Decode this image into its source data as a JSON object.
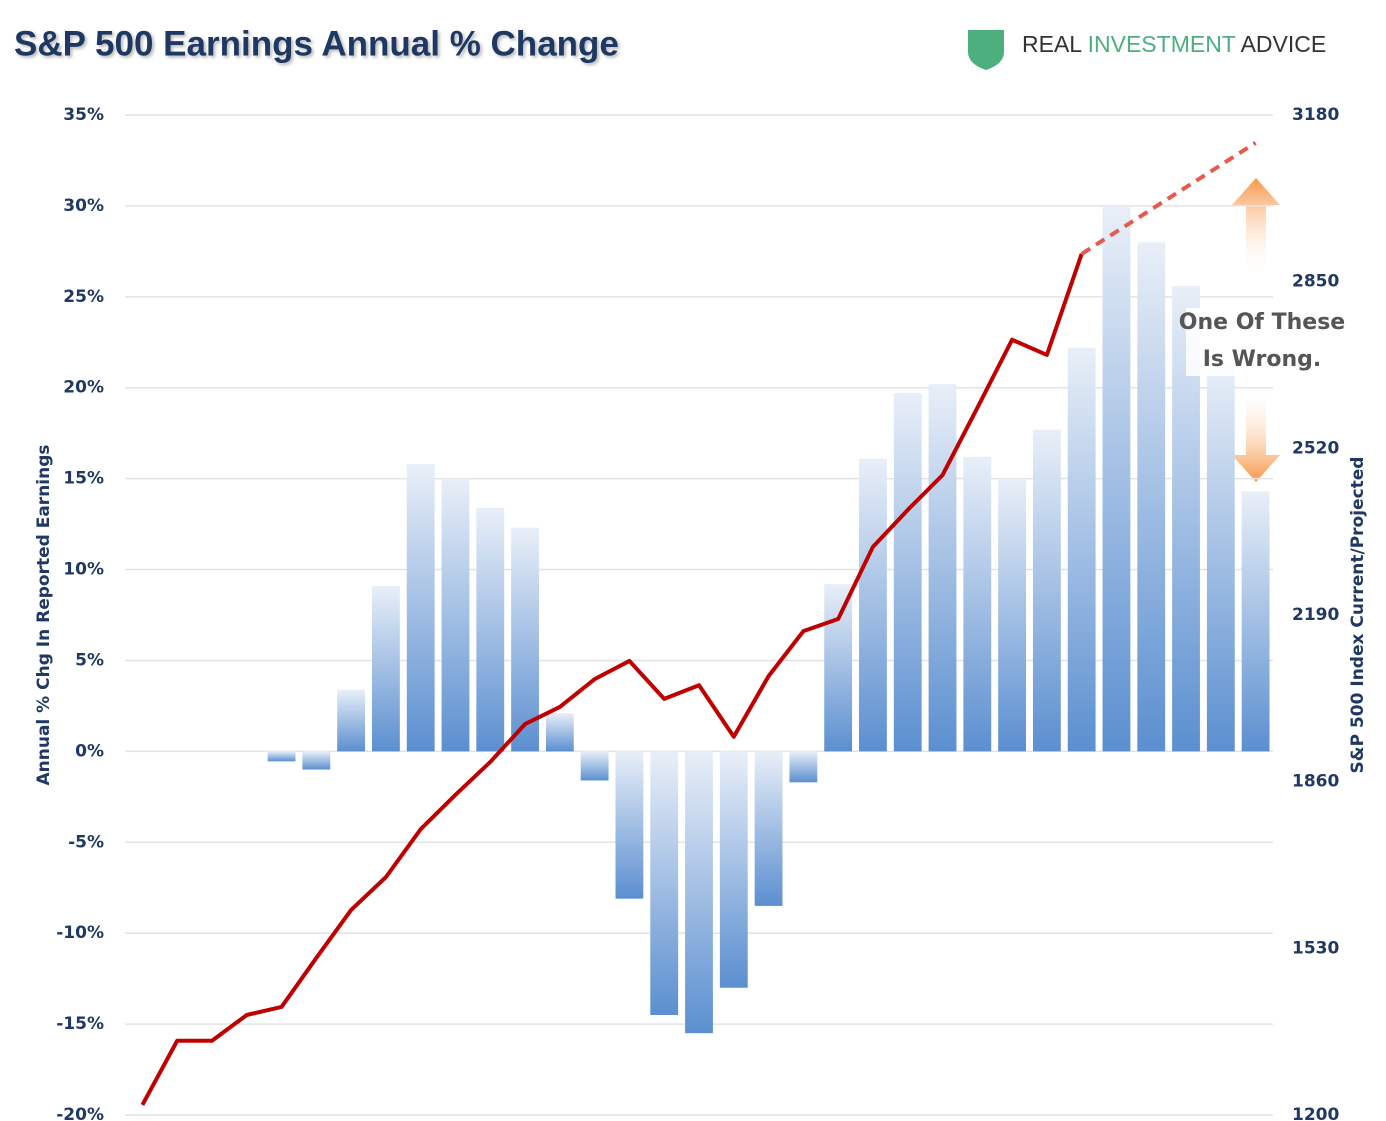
{
  "chart_data": {
    "type": "bar-line",
    "title": "S&P 500 Earnings Annual % Change",
    "logo": [
      "REAL ",
      "INVESTMENT",
      " ADVICE"
    ],
    "y_label": "Annual % Chg In Reported Earnings",
    "y2_label": "S&P 500 Index Current/Projected",
    "annotation": [
      "One Of These",
      "Is Wrong."
    ],
    "ylim": [
      -20,
      35
    ],
    "yticks": [
      {
        "value": -20,
        "label": "-20%"
      },
      {
        "value": -15,
        "label": "-15%"
      },
      {
        "value": -10,
        "label": "-10%"
      },
      {
        "value": -5,
        "label": "-5%"
      },
      {
        "value": 0,
        "label": "0%"
      },
      {
        "value": 5,
        "label": "5%"
      },
      {
        "value": 10,
        "label": "10%"
      },
      {
        "value": 15,
        "label": "15%"
      },
      {
        "value": 20,
        "label": "20%"
      },
      {
        "value": 25,
        "label": "25%"
      },
      {
        "value": 30,
        "label": "30%"
      },
      {
        "value": 35,
        "label": "35%"
      }
    ],
    "y2lim": [
      1200,
      3180
    ],
    "y2ticks": [
      1200,
      1530,
      1860,
      2190,
      2520,
      2850,
      3180
    ],
    "grid": true,
    "series": [
      {
        "type": "bar",
        "color": "#5b8fd0",
        "values": [
          null,
          null,
          null,
          null,
          -0.55,
          -1.0,
          3.4,
          9.1,
          15.8,
          15.0,
          13.4,
          12.3,
          2.1,
          -1.6,
          -8.1,
          -14.5,
          -15.5,
          -13.0,
          -8.5,
          -1.7,
          9.2,
          16.1,
          19.7,
          20.2,
          16.2,
          15.0,
          17.7,
          22.2,
          30.0,
          28.0,
          25.6,
          21.3,
          14.3
        ]
      },
      {
        "type": "line",
        "axis": "y2",
        "color": "#c00000",
        "values": [
          1220,
          1347,
          1347,
          1398,
          1414,
          1511,
          1606,
          1671,
          1766,
          1834,
          1899,
          1974,
          2008,
          2063,
          2099,
          2024,
          2051,
          1949,
          2069,
          2158,
          2182,
          2325,
          2398,
          2467,
          2600,
          2735,
          2705,
          2905,
          null,
          null,
          null,
          null,
          null
        ]
      },
      {
        "type": "line",
        "axis": "y2",
        "color": "#e8584f",
        "dashed": true,
        "values": [
          null,
          null,
          null,
          null,
          null,
          null,
          null,
          null,
          null,
          null,
          null,
          null,
          null,
          null,
          null,
          null,
          null,
          null,
          null,
          null,
          null,
          null,
          null,
          null,
          null,
          null,
          null,
          2905,
          2949,
          2993,
          3037,
          3081,
          3125
        ]
      }
    ]
  }
}
